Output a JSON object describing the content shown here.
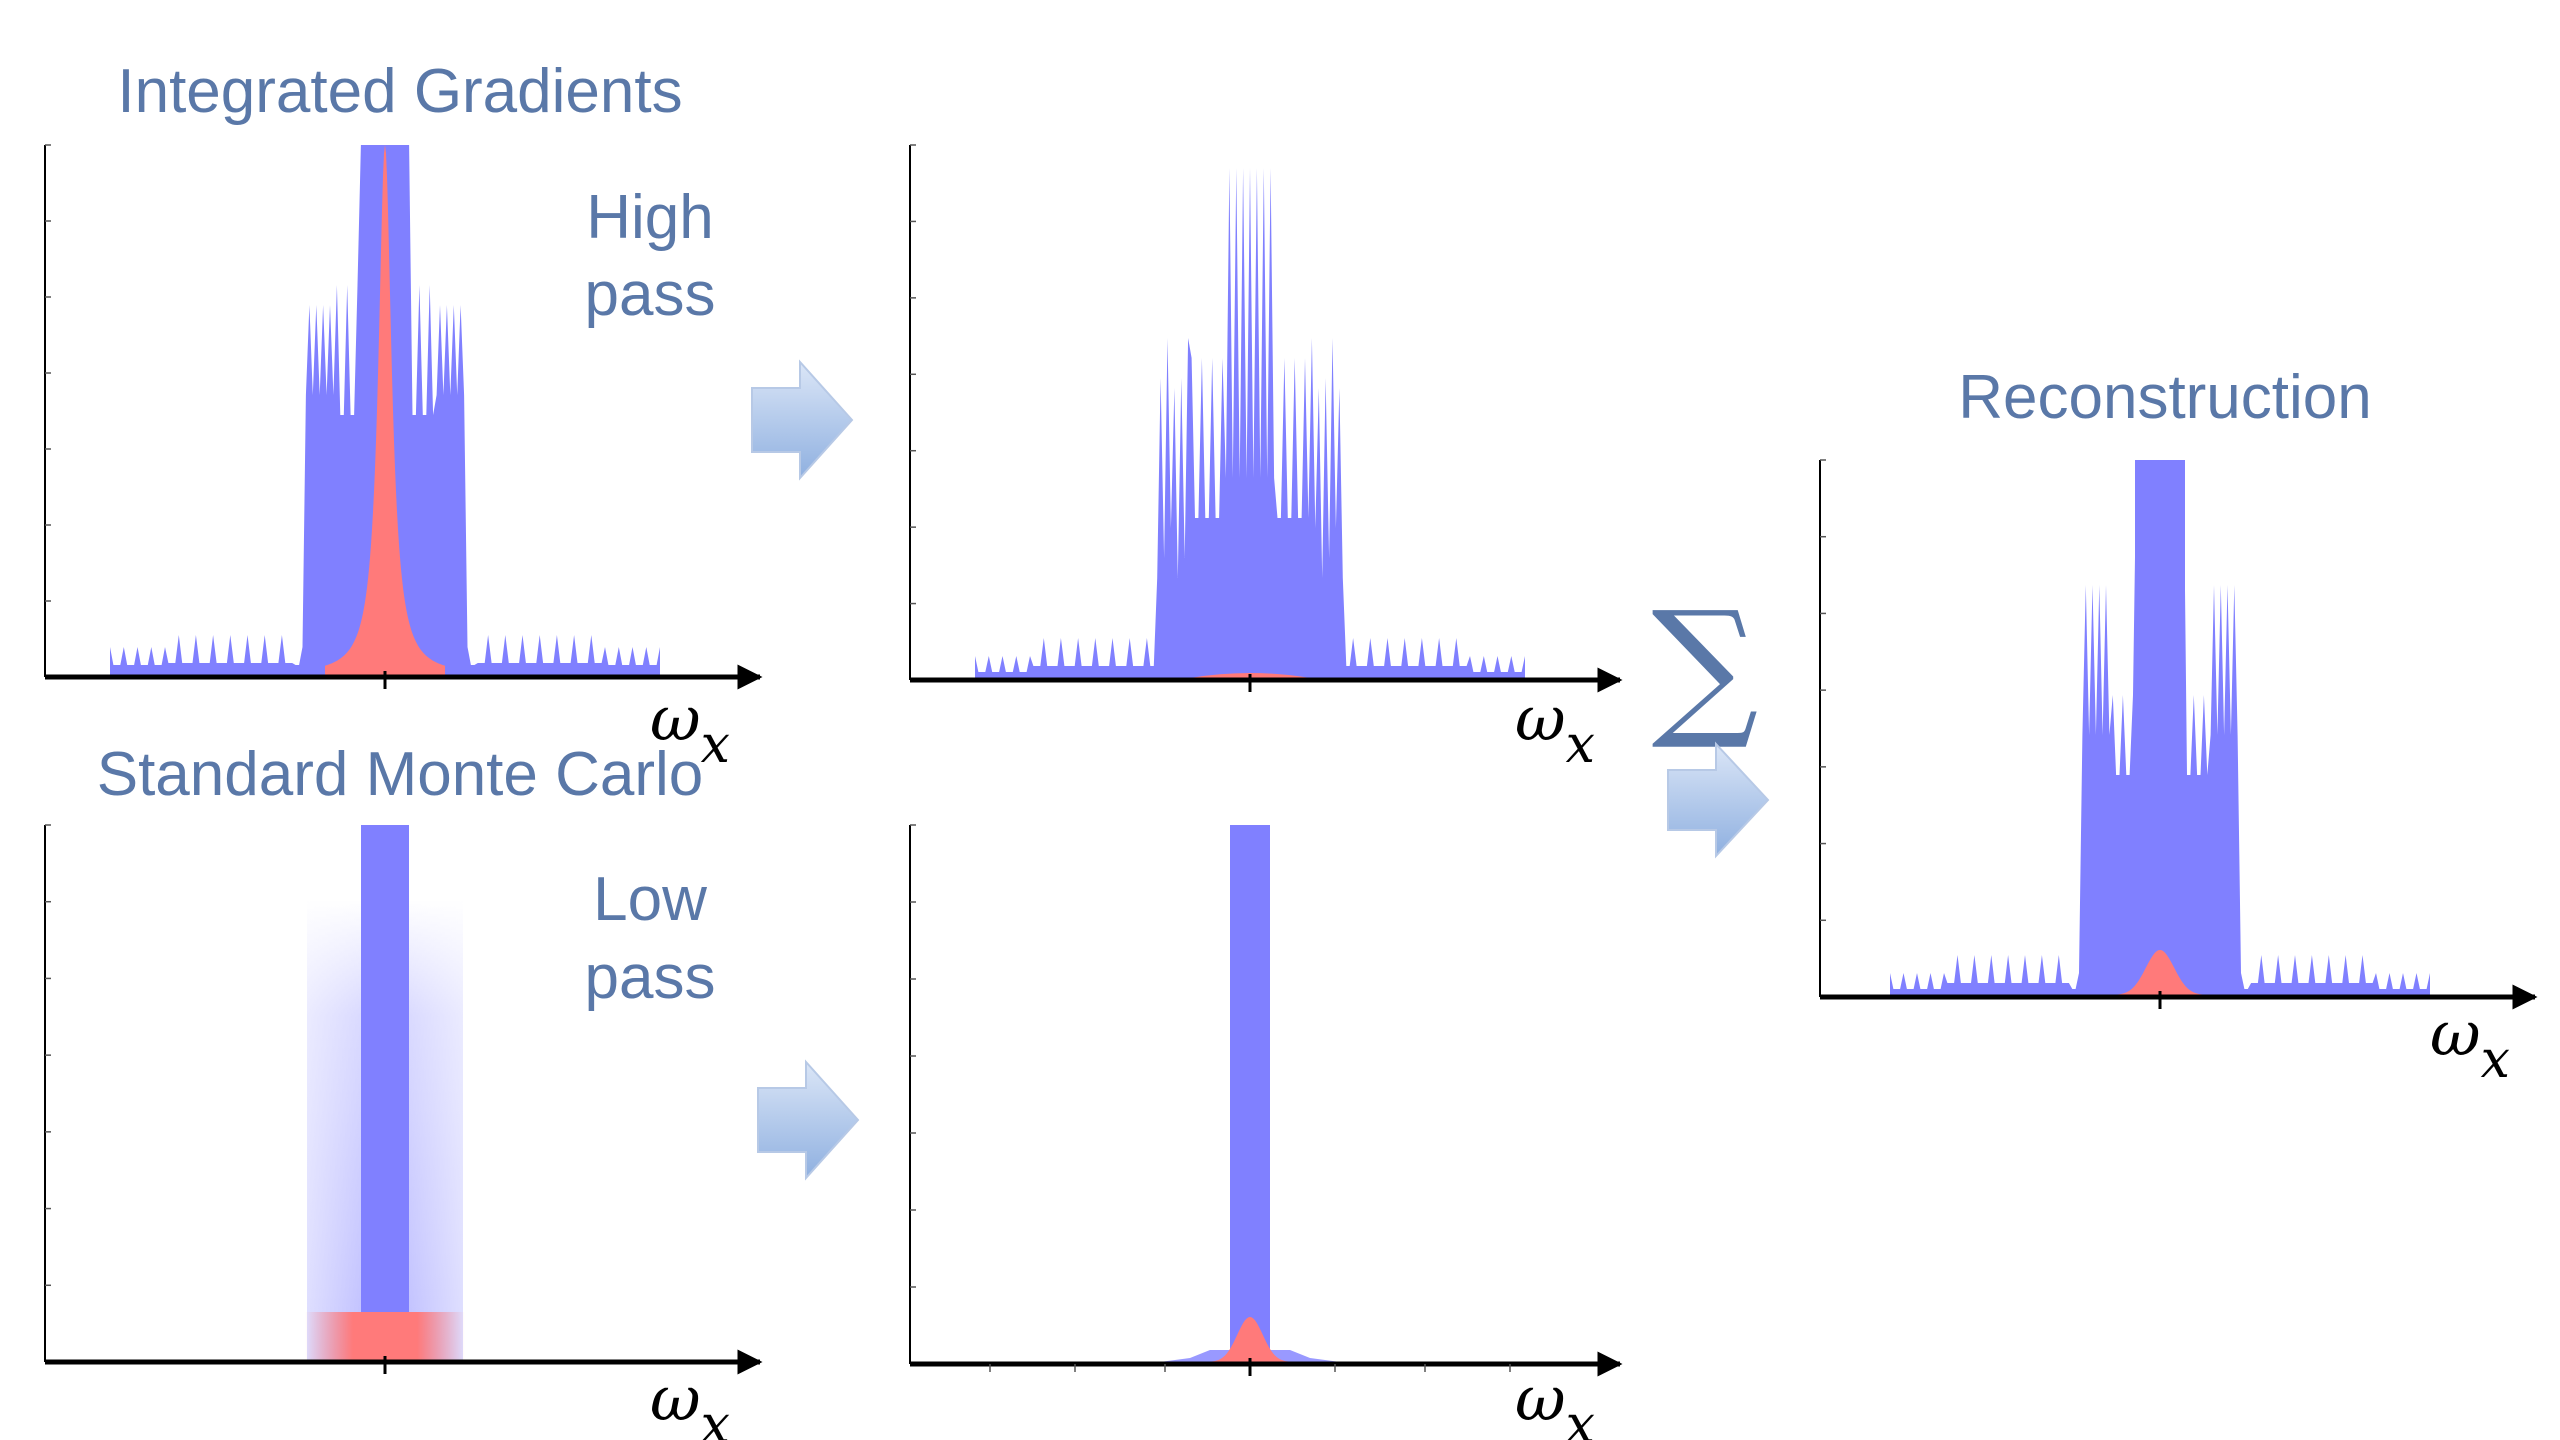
{
  "labels": {
    "integrated_gradients": "Integrated Gradients",
    "standard_monte_carlo": "Standard Monte Carlo",
    "reconstruction": "Reconstruction",
    "high": "High",
    "low": "Low",
    "pass": "pass",
    "sum_symbol": "∑",
    "axis_var": "ω",
    "axis_sub": "x"
  },
  "colors": {
    "blue_signal": "#8080ff",
    "red_signal": "#ff7a7a",
    "label_text": "#5a78a8",
    "arrow_fill_light": "#dbe6f7",
    "arrow_fill_dark": "#8fb0e0"
  },
  "panels": [
    {
      "id": "ig-spectrum",
      "content": "integrated gradients spectrum"
    },
    {
      "id": "high-pass-result",
      "content": "high pass filtered spectrum"
    },
    {
      "id": "mc-spectrum",
      "content": "standard monte carlo spectrum"
    },
    {
      "id": "low-pass-result",
      "content": "low pass filtered spectrum"
    },
    {
      "id": "reconstruction",
      "content": "reconstructed spectrum"
    }
  ]
}
